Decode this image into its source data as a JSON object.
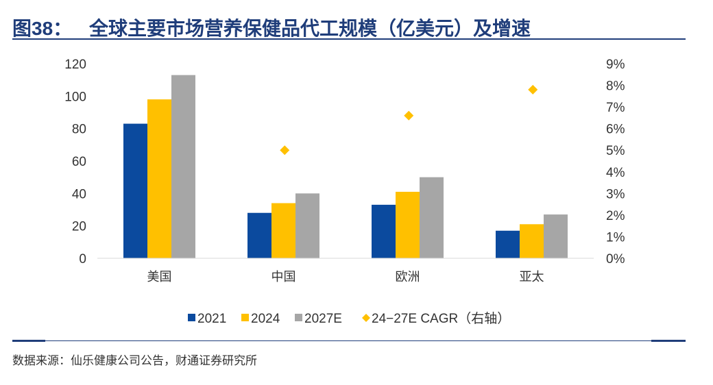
{
  "header": {
    "figure_number": "图38：",
    "title": "全球主要市场营养保健品代工规模（亿美元）及增速"
  },
  "footer": {
    "source": "数据来源：仙乐健康公司公告，财通证券研究所"
  },
  "chart_data": {
    "type": "bar",
    "title": "全球主要市场营养保健品代工规模（亿美元）及增速",
    "categories": [
      "美国",
      "中国",
      "欧洲",
      "亚太"
    ],
    "series": [
      {
        "name": "2021",
        "axis": "left",
        "kind": "bar",
        "color": "#0b4a9e",
        "values": [
          83,
          28,
          33,
          17
        ]
      },
      {
        "name": "2024",
        "axis": "left",
        "kind": "bar",
        "color": "#ffc000",
        "values": [
          98,
          34,
          41,
          21
        ]
      },
      {
        "name": "2027E",
        "axis": "left",
        "kind": "bar",
        "color": "#a6a6a6",
        "values": [
          113,
          40,
          50,
          27
        ]
      },
      {
        "name": "24-27E CAGR（右轴）",
        "axis": "right",
        "kind": "scatter",
        "marker": "diamond",
        "color": "#ffc000",
        "values": [
          null,
          0.05,
          0.066,
          0.078
        ]
      }
    ],
    "y_left": {
      "lim": [
        0,
        120
      ],
      "ticks": [
        0,
        20,
        40,
        60,
        80,
        100,
        120
      ],
      "tick_labels": [
        "0",
        "20",
        "40",
        "60",
        "80",
        "100",
        "120"
      ]
    },
    "y_right": {
      "lim": [
        0,
        0.09
      ],
      "ticks": [
        0,
        0.01,
        0.02,
        0.03,
        0.04,
        0.05,
        0.06,
        0.07,
        0.08,
        0.09
      ],
      "tick_labels": [
        "0%",
        "1%",
        "2%",
        "3%",
        "4%",
        "5%",
        "6%",
        "7%",
        "8%",
        "9%"
      ]
    },
    "legend": {
      "position": "bottom-center",
      "labels": [
        "2021",
        "2024",
        "2027E",
        "24−27E CAGR（右轴）"
      ]
    },
    "grid": false
  }
}
